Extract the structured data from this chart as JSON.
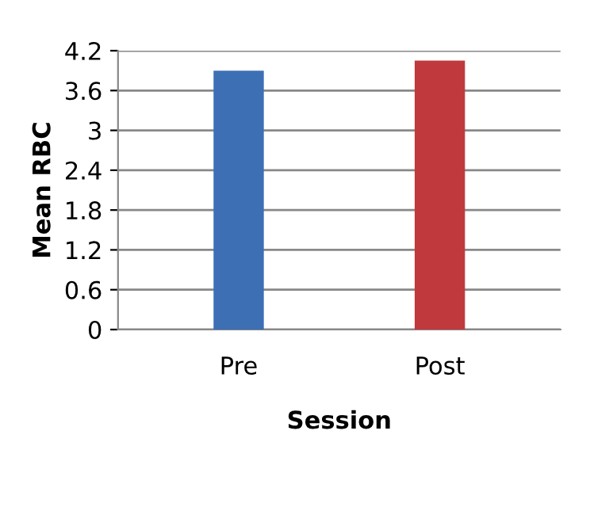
{
  "chart_data": {
    "type": "bar",
    "xlabel": "Session",
    "ylabel": "Mean RBC",
    "categories": [
      "Pre",
      "Post"
    ],
    "series": [
      {
        "values": [
          3.9,
          4.05
        ],
        "colors": [
          "#3d6fb5",
          "#c0393d"
        ]
      }
    ],
    "ylim": [
      0,
      4.2
    ],
    "yticks": [
      0,
      0.6,
      1.2,
      1.8,
      2.4,
      3,
      3.6,
      4.2
    ],
    "grid": "y"
  }
}
